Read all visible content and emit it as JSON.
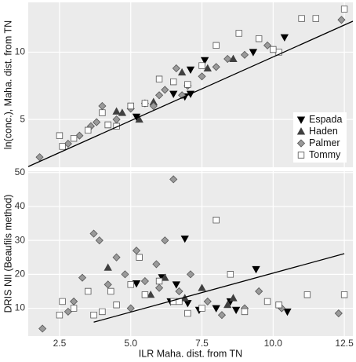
{
  "chart_data": [
    {
      "type": "scatter",
      "y_label": "ln(conc.), Maha. dist. from TN",
      "xlim": [
        1.4,
        12.8
      ],
      "ylim": [
        1.45,
        13.7
      ],
      "xticks": [
        2.5,
        5,
        7.5,
        10,
        12.5
      ],
      "yticks": [
        5,
        10
      ],
      "grid": true,
      "legend": "bottom-right",
      "series": [
        {
          "name": "Espada",
          "color": "#000000",
          "marker": "triangle-down",
          "x": [
            5.2,
            6.5,
            7.1,
            7.1,
            7.6,
            9.3,
            10.4,
            6.9
          ],
          "values": [
            5.2,
            6.9,
            6.9,
            8.7,
            9.4,
            10.0,
            11.1,
            6.7
          ]
        },
        {
          "name": "Haden",
          "color": "#404040",
          "marker": "triangle-up",
          "x": [
            4.5,
            5.3,
            6.8,
            7.7,
            8.6,
            4.7,
            5.8
          ],
          "values": [
            5.6,
            5.0,
            8.5,
            8.8,
            9.5,
            5.5,
            6.3
          ]
        },
        {
          "name": "Palmer",
          "color": "#9a9a9a",
          "marker": "diamond",
          "x": [
            1.8,
            2.8,
            3.2,
            3.6,
            4.0,
            4.5,
            5.0,
            5.5,
            6.0,
            6.2,
            6.6,
            7.0,
            7.5,
            8.0,
            8.4,
            9.0,
            9.8,
            12.4,
            3.8,
            5.8,
            6.8
          ],
          "values": [
            2.2,
            3.2,
            3.8,
            4.5,
            6.0,
            5.0,
            5.8,
            6.2,
            6.8,
            7.2,
            8.8,
            7.5,
            8.2,
            8.9,
            9.5,
            9.8,
            10.5,
            12.4,
            4.8,
            6.0,
            6.8
          ]
        },
        {
          "name": "Tommy",
          "color": "#ffffff",
          "marker": "square",
          "x": [
            2.5,
            2.6,
            3.0,
            3.5,
            4.0,
            4.5,
            5.0,
            5.5,
            6.0,
            6.5,
            7.0,
            7.5,
            8.0,
            8.8,
            9.5,
            10.2,
            11.0,
            11.5,
            12.5,
            10.0,
            4.2
          ],
          "values": [
            3.8,
            3.0,
            3.6,
            4.2,
            5.5,
            4.5,
            6.0,
            6.2,
            8.0,
            7.8,
            7.6,
            9.0,
            10.5,
            11.4,
            11.0,
            10.0,
            12.5,
            12.5,
            13.2,
            10.2,
            4.6
          ]
        }
      ],
      "fit": {
        "x": [
          1.4,
          12.8
        ],
        "y": [
          1.5,
          12.3
        ]
      }
    },
    {
      "type": "scatter",
      "y_label": "DRIS NII (Beaufils method)",
      "x_label": "ILR Maha. dist. from TN",
      "xlim": [
        1.4,
        12.8
      ],
      "ylim": [
        1.8,
        50.4
      ],
      "xticks": [
        2.5,
        {
          "value": 5,
          "label": "5.0"
        },
        7.5,
        {
          "value": 10,
          "label": "10.0"
        },
        12.5
      ],
      "yticks": [
        10,
        20,
        30,
        40,
        50
      ],
      "grid": true,
      "series": [
        {
          "color": "#000000",
          "marker": "triangle-down",
          "x": [
            5.2,
            6.1,
            6.9,
            6.4,
            7.4,
            6.6,
            7.0,
            8.0,
            8.7,
            9.4,
            10.5,
            8.5
          ],
          "values": [
            17.3,
            19.1,
            30.5,
            12.0,
            9.5,
            17.0,
            11.5,
            10.0,
            9.5,
            21.5,
            9.0,
            12.0
          ]
        },
        {
          "color": "#404040",
          "marker": "triangle-up",
          "x": [
            4.2,
            6.2,
            6.9,
            8.6,
            5.7,
            7.5,
            8.4
          ],
          "values": [
            22,
            19,
            13,
            13,
            14,
            16,
            11
          ]
        },
        {
          "color": "#9a9a9a",
          "marker": "diamond",
          "x": [
            1.9,
            2.8,
            3.0,
            3.7,
            3.9,
            4.2,
            4.5,
            4.8,
            5.2,
            5.5,
            5.9,
            6.2,
            6.5,
            6.7,
            7.1,
            7.7,
            8.2,
            9.0,
            9.5,
            10.3,
            12.3,
            3.3,
            5.0,
            6.0
          ],
          "values": [
            4,
            9,
            12,
            32,
            30,
            17,
            25,
            20,
            27,
            18,
            23,
            30,
            48,
            15,
            20,
            12,
            8,
            10,
            15,
            10,
            8.5,
            19,
            10,
            16
          ]
        },
        {
          "color": "#ffffff",
          "marker": "square",
          "x": [
            2.5,
            2.6,
            3.0,
            3.5,
            4.0,
            4.5,
            5.0,
            5.5,
            6.0,
            6.5,
            7.0,
            7.5,
            8.0,
            8.5,
            9.0,
            9.8,
            10.2,
            11.2,
            12.5,
            5.3,
            4.3,
            3.7,
            6.7
          ],
          "values": [
            8,
            12,
            10,
            15,
            9,
            11,
            17,
            14,
            18,
            12,
            8.5,
            10,
            36,
            20,
            9,
            12,
            11,
            14,
            14,
            25,
            15,
            8,
            12
          ]
        }
      ],
      "fit": {
        "x": [
          3.7,
          12.5
        ],
        "y": [
          5.9,
          26.1
        ]
      }
    }
  ]
}
